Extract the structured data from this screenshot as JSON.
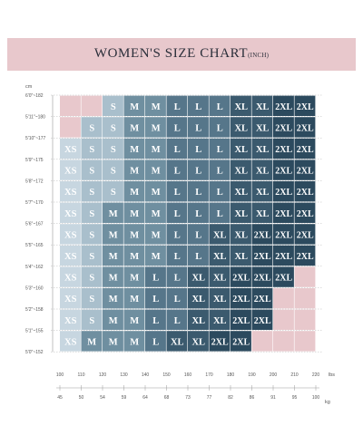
{
  "header": {
    "title": "WOMEN'S SIZE CHART",
    "subtitle": "(INCH)"
  },
  "axes": {
    "height_unit": "cm",
    "weight_unit_top": "lbs",
    "weight_unit_bottom": "kg",
    "height_labels": [
      "6'0\"~182",
      "5'11\"~180",
      "5'10\"~177",
      "5'9\"~175",
      "5'8\"~172",
      "5'7\"~170",
      "5'6\"~167",
      "5'5\"~165",
      "5'4\"~162",
      "5'3\"~160",
      "5'2\"~158",
      "5'1\"~155",
      "5'0\"~152"
    ],
    "lbs_ticks": [
      "100",
      "110",
      "120",
      "130",
      "140",
      "150",
      "160",
      "170",
      "180",
      "190",
      "200",
      "210",
      "220"
    ],
    "kg_ticks": [
      "45",
      "50",
      "54",
      "59",
      "64",
      "68",
      "73",
      "77",
      "82",
      "86",
      "91",
      "95",
      "100"
    ]
  },
  "chart_data": {
    "type": "table",
    "columns_lbs": [
      "100",
      "110",
      "120",
      "130",
      "140",
      "150",
      "160",
      "170",
      "180",
      "190",
      "200",
      "210",
      "220"
    ],
    "row_heights": [
      "6'0\"~182",
      "5'11\"~180",
      "5'10\"~177",
      "5'9\"~175",
      "5'8\"~172",
      "5'7\"~170",
      "5'6\"~167",
      "5'5\"~165",
      "5'4\"~162",
      "5'3\"~160",
      "5'2\"~158",
      "5'1\"~155"
    ],
    "rows": [
      [
        null,
        null,
        "S",
        "M",
        "M",
        "L",
        "L",
        "L",
        "XL",
        "XL",
        "2XL",
        "2XL"
      ],
      [
        null,
        "S",
        "S",
        "M",
        "M",
        "L",
        "L",
        "L",
        "XL",
        "XL",
        "2XL",
        "2XL"
      ],
      [
        "XS",
        "S",
        "S",
        "M",
        "M",
        "L",
        "L",
        "L",
        "XL",
        "XL",
        "2XL",
        "2XL"
      ],
      [
        "XS",
        "S",
        "S",
        "M",
        "M",
        "L",
        "L",
        "L",
        "XL",
        "XL",
        "2XL",
        "2XL"
      ],
      [
        "XS",
        "S",
        "S",
        "M",
        "M",
        "L",
        "L",
        "L",
        "XL",
        "XL",
        "2XL",
        "2XL"
      ],
      [
        "XS",
        "S",
        "M",
        "M",
        "M",
        "L",
        "L",
        "L",
        "XL",
        "XL",
        "2XL",
        "2XL"
      ],
      [
        "XS",
        "S",
        "M",
        "M",
        "M",
        "L",
        "L",
        "XL",
        "XL",
        "2XL",
        "2XL",
        "2XL"
      ],
      [
        "XS",
        "S",
        "M",
        "M",
        "M",
        "L",
        "L",
        "XL",
        "XL",
        "2XL",
        "2XL",
        "2XL"
      ],
      [
        "XS",
        "S",
        "M",
        "M",
        "L",
        "L",
        "XL",
        "XL",
        "2XL",
        "2XL",
        "2XL",
        null
      ],
      [
        "XS",
        "S",
        "M",
        "M",
        "L",
        "L",
        "XL",
        "XL",
        "2XL",
        "2XL",
        null,
        null
      ],
      [
        "XS",
        "S",
        "M",
        "M",
        "L",
        "L",
        "XL",
        "XL",
        "2XL",
        "2XL",
        null,
        null
      ],
      [
        "XS",
        "M",
        "M",
        "M",
        "L",
        "XL",
        "XL",
        "2XL",
        "2XL",
        null,
        null,
        null
      ]
    ],
    "colors": {
      "XS": "#c7d6e0",
      "S": "#a9bfcc",
      "M": "#6f8fa0",
      "L": "#56768a",
      "XL": "#3b5a6e",
      "2XL": "#2c4a5e",
      "empty": "#e8c8cc"
    }
  }
}
